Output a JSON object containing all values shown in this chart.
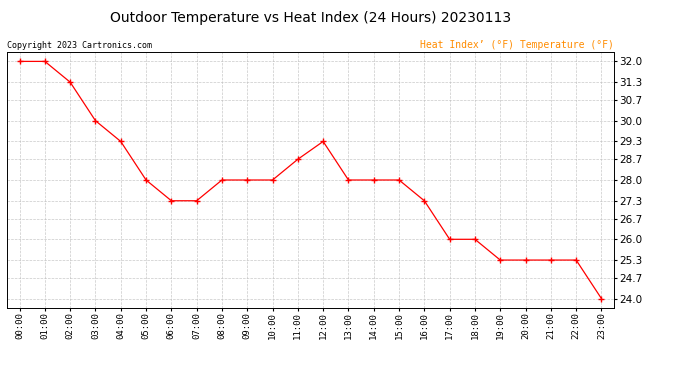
{
  "title": "Outdoor Temperature vs Heat Index (24 Hours) 20230113",
  "copyright": "Copyright 2023 Cartronics.com",
  "legend_heat": "Heat Index’ (°F)",
  "legend_temp": "Temperature (°F)",
  "hours": [
    "00:00",
    "01:00",
    "02:00",
    "03:00",
    "04:00",
    "05:00",
    "06:00",
    "07:00",
    "08:00",
    "09:00",
    "10:00",
    "11:00",
    "12:00",
    "13:00",
    "14:00",
    "15:00",
    "16:00",
    "17:00",
    "18:00",
    "19:00",
    "20:00",
    "21:00",
    "22:00",
    "23:00"
  ],
  "temperature": [
    32.0,
    32.0,
    31.3,
    30.0,
    29.3,
    28.0,
    27.3,
    27.3,
    28.0,
    28.0,
    28.0,
    28.7,
    29.3,
    28.0,
    28.0,
    28.0,
    27.3,
    26.0,
    26.0,
    25.3,
    25.3,
    25.3,
    25.3,
    24.0
  ],
  "line_color": "#ff0000",
  "marker": "+",
  "yticks": [
    24.0,
    24.7,
    25.3,
    26.0,
    26.7,
    27.3,
    28.0,
    28.7,
    29.3,
    30.0,
    30.7,
    31.3,
    32.0
  ],
  "ylim": [
    23.7,
    32.3
  ],
  "bg_color": "#ffffff",
  "grid_color": "#bbbbbb",
  "title_fontsize": 10,
  "copyright_color": "#000000",
  "legend_color": "#ff8c00"
}
